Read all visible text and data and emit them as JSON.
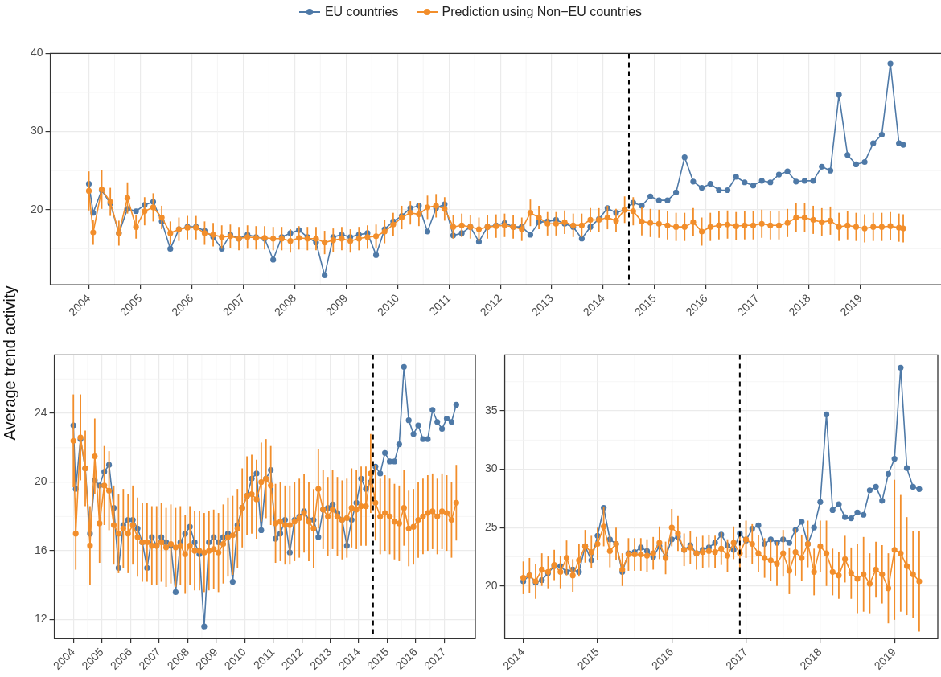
{
  "chart_data": [
    {
      "type": "line",
      "ylabel": "Average trend activity",
      "legend": "top",
      "grid": true,
      "marker": "circle",
      "line_style": "solid",
      "x": [
        "2004-01",
        "2004-02",
        "2004-04",
        "2004-06",
        "2004-08",
        "2004-10",
        "2004-12",
        "2005-02",
        "2005-04",
        "2005-06",
        "2005-08",
        "2005-10",
        "2005-12",
        "2006-02",
        "2006-04",
        "2006-06",
        "2006-08",
        "2006-10",
        "2006-12",
        "2007-02",
        "2007-04",
        "2007-06",
        "2007-08",
        "2007-10",
        "2007-12",
        "2008-02",
        "2008-04",
        "2008-06",
        "2008-08",
        "2008-10",
        "2008-12",
        "2009-02",
        "2009-04",
        "2009-06",
        "2009-08",
        "2009-10",
        "2009-12",
        "2010-02",
        "2010-04",
        "2010-06",
        "2010-08",
        "2010-10",
        "2010-12",
        "2011-02",
        "2011-04",
        "2011-06",
        "2011-08",
        "2011-10",
        "2011-12",
        "2012-02",
        "2012-04",
        "2012-06",
        "2012-08",
        "2012-10",
        "2012-12",
        "2013-02",
        "2013-04",
        "2013-06",
        "2013-08",
        "2013-10",
        "2013-12",
        "2014-02",
        "2014-04",
        "2014-06",
        "2014-08",
        "2014-10",
        "2014-12",
        "2015-02",
        "2015-04",
        "2015-06",
        "2015-08",
        "2015-10",
        "2015-12",
        "2016-02",
        "2016-04",
        "2016-06",
        "2016-08",
        "2016-10",
        "2016-12",
        "2017-02",
        "2017-04",
        "2017-06",
        "2017-08",
        "2017-10",
        "2017-12",
        "2018-02",
        "2018-04",
        "2018-06",
        "2018-08",
        "2018-10",
        "2018-12",
        "2019-02",
        "2019-04",
        "2019-06",
        "2019-08",
        "2019-10",
        "2019-11"
      ],
      "xlim": [
        "2003-04",
        "2020-08"
      ],
      "xticks": [
        "2004",
        "2005",
        "2006",
        "2007",
        "2008",
        "2009",
        "2010",
        "2011",
        "2012",
        "2013",
        "2014",
        "2015",
        "2016",
        "2017",
        "2018",
        "2019"
      ],
      "ylim": [
        10.4,
        40
      ],
      "yticks": [
        20,
        30,
        40
      ],
      "ref_lines": [
        {
          "axis": "x",
          "value": "2014-07",
          "color": "#000000",
          "line_style": "dashed"
        }
      ],
      "series": [
        {
          "name": "EU countries",
          "color": "#4e79a7",
          "values": [
            23.3,
            19.6,
            22.5,
            20.8,
            17.0,
            20.1,
            19.8,
            20.6,
            21.0,
            18.5,
            15.0,
            17.5,
            17.8,
            17.8,
            17.3,
            16.5,
            15.0,
            16.8,
            16.3,
            16.8,
            16.5,
            16.3,
            13.6,
            16.5,
            17.0,
            17.4,
            16.5,
            15.8,
            11.6,
            16.5,
            16.8,
            16.5,
            16.8,
            17.0,
            14.2,
            17.5,
            18.5,
            19.2,
            20.2,
            20.5,
            17.2,
            20.2,
            20.7,
            16.7,
            17.0,
            17.8,
            15.9,
            17.8,
            18.0,
            18.3,
            17.8,
            17.8,
            16.8,
            18.4,
            18.5,
            18.7,
            18.2,
            17.8,
            16.3,
            17.8,
            18.8,
            20.2,
            19.6,
            20.0,
            20.9,
            20.5,
            21.7,
            21.2,
            21.2,
            22.2,
            26.7,
            23.6,
            22.8,
            23.3,
            22.5,
            22.5,
            24.2,
            23.5,
            23.1,
            23.7,
            23.5,
            24.5,
            24.9,
            23.6,
            23.7,
            23.7,
            25.5,
            25.0,
            34.7,
            27.0,
            25.8,
            26.1,
            28.5,
            29.6,
            38.7,
            28.5,
            28.3
          ]
        },
        {
          "name": "Prediction using Non−EU countries",
          "color": "#f28e2b",
          "values": [
            22.4,
            17.1,
            22.6,
            21.0,
            17.0,
            21.5,
            17.8,
            19.8,
            20.3,
            19.0,
            17.0,
            17.5,
            17.7,
            17.7,
            17.0,
            16.8,
            16.5,
            16.6,
            16.3,
            16.5,
            16.4,
            16.4,
            16.3,
            16.3,
            16.0,
            16.4,
            16.3,
            16.3,
            15.8,
            16.1,
            16.3,
            16.0,
            16.3,
            16.5,
            16.6,
            17.2,
            18.1,
            19.0,
            19.6,
            19.4,
            20.3,
            20.5,
            20.1,
            17.8,
            18.0,
            17.8,
            17.5,
            17.8,
            17.9,
            18.0,
            17.8,
            17.5,
            19.6,
            19.0,
            18.2,
            18.2,
            18.4,
            18.0,
            18.0,
            18.7,
            18.7,
            19.0,
            18.6,
            20.0,
            19.8,
            18.5,
            18.3,
            18.2,
            18.0,
            17.8,
            17.8,
            18.4,
            17.2,
            17.8,
            18.0,
            18.1,
            17.9,
            18.0,
            18.0,
            18.2,
            18.0,
            18.0,
            18.3,
            19.0,
            19.0,
            18.7,
            18.4,
            18.6,
            17.8,
            18.0,
            17.8,
            17.6,
            17.8,
            17.8,
            17.9,
            17.7,
            17.6
          ],
          "errors": [
            2.5,
            1.6,
            2.5,
            1.8,
            1.6,
            2.0,
            1.5,
            1.8,
            1.8,
            1.5,
            1.5,
            1.5,
            1.5,
            1.5,
            1.5,
            1.5,
            1.5,
            1.5,
            1.5,
            1.5,
            1.5,
            1.5,
            1.5,
            1.5,
            1.5,
            1.5,
            1.5,
            1.5,
            1.5,
            1.5,
            1.5,
            1.5,
            1.5,
            1.5,
            1.5,
            1.5,
            1.5,
            1.5,
            1.5,
            1.5,
            1.5,
            1.5,
            1.5,
            1.5,
            1.5,
            1.5,
            1.5,
            1.5,
            1.5,
            1.5,
            1.5,
            1.5,
            1.7,
            1.5,
            1.5,
            1.5,
            1.5,
            1.5,
            1.5,
            1.5,
            1.5,
            1.5,
            1.5,
            1.7,
            1.8,
            1.8,
            1.8,
            1.8,
            1.8,
            1.8,
            1.8,
            1.8,
            1.8,
            1.8,
            1.8,
            1.8,
            1.8,
            1.8,
            1.8,
            1.8,
            1.8,
            1.8,
            1.8,
            1.8,
            1.8,
            1.8,
            1.8,
            1.8,
            1.8,
            1.8,
            1.8,
            1.8,
            1.8,
            1.8,
            1.8,
            1.8,
            1.8
          ]
        }
      ]
    },
    {
      "type": "line",
      "grid": true,
      "marker": "circle",
      "line_style": "solid",
      "x": [
        "2004-01",
        "2004-02",
        "2004-04",
        "2004-06",
        "2004-08",
        "2004-10",
        "2004-12",
        "2005-02",
        "2005-04",
        "2005-06",
        "2005-08",
        "2005-10",
        "2005-12",
        "2006-02",
        "2006-04",
        "2006-06",
        "2006-08",
        "2006-10",
        "2006-12",
        "2007-02",
        "2007-04",
        "2007-06",
        "2007-08",
        "2007-10",
        "2007-12",
        "2008-02",
        "2008-04",
        "2008-06",
        "2008-08",
        "2008-10",
        "2008-12",
        "2009-02",
        "2009-04",
        "2009-06",
        "2009-08",
        "2009-10",
        "2009-12",
        "2010-02",
        "2010-04",
        "2010-06",
        "2010-08",
        "2010-10",
        "2010-12",
        "2011-02",
        "2011-04",
        "2011-06",
        "2011-08",
        "2011-10",
        "2011-12",
        "2012-02",
        "2012-04",
        "2012-06",
        "2012-08",
        "2012-10",
        "2012-12",
        "2013-02",
        "2013-04",
        "2013-06",
        "2013-08",
        "2013-10",
        "2013-12",
        "2014-02",
        "2014-04",
        "2014-06",
        "2014-08",
        "2014-10",
        "2014-12",
        "2015-02",
        "2015-04",
        "2015-06",
        "2015-08",
        "2015-10",
        "2015-12",
        "2016-02",
        "2016-04",
        "2016-06",
        "2016-08",
        "2016-10",
        "2016-12",
        "2017-02",
        "2017-04",
        "2017-06"
      ],
      "xlim": [
        "2003-05",
        "2018-02"
      ],
      "xticks": [
        "2004",
        "2005",
        "2006",
        "2007",
        "2008",
        "2009",
        "2010",
        "2011",
        "2012",
        "2013",
        "2014",
        "2015",
        "2016",
        "2017"
      ],
      "ylim": [
        10.9,
        27.4
      ],
      "yticks": [
        12,
        16,
        20,
        24
      ],
      "ref_lines": [
        {
          "axis": "x",
          "value": "2014-07",
          "color": "#000000",
          "line_style": "dashed"
        }
      ],
      "series": [
        {
          "color": "#4e79a7",
          "values": [
            23.3,
            19.6,
            22.5,
            20.8,
            17.0,
            20.1,
            19.8,
            20.6,
            21.0,
            18.5,
            15.0,
            17.5,
            17.8,
            17.8,
            17.3,
            16.5,
            15.0,
            16.8,
            16.3,
            16.8,
            16.5,
            16.3,
            13.6,
            16.5,
            17.0,
            17.4,
            16.5,
            15.8,
            11.6,
            16.5,
            16.8,
            16.5,
            16.8,
            17.0,
            14.2,
            17.5,
            18.5,
            19.2,
            20.2,
            20.5,
            17.2,
            20.2,
            20.7,
            16.7,
            17.0,
            17.8,
            15.9,
            17.8,
            18.0,
            18.3,
            17.8,
            17.8,
            16.8,
            18.4,
            18.5,
            18.7,
            18.2,
            17.8,
            16.3,
            17.8,
            18.8,
            20.2,
            19.6,
            20.0,
            20.9,
            20.5,
            21.7,
            21.2,
            21.2,
            22.2,
            26.7,
            23.6,
            22.8,
            23.3,
            22.5,
            22.5,
            24.2,
            23.5,
            23.1,
            23.7,
            23.5,
            24.5
          ]
        },
        {
          "color": "#f28e2b",
          "values": [
            22.4,
            17.0,
            22.6,
            20.8,
            16.3,
            21.5,
            17.6,
            19.8,
            19.5,
            17.5,
            17.0,
            17.3,
            17.0,
            17.5,
            16.8,
            16.5,
            16.5,
            16.3,
            16.3,
            16.5,
            16.2,
            16.4,
            16.2,
            16.3,
            15.8,
            16.3,
            16.0,
            16.0,
            15.9,
            16.0,
            16.1,
            15.9,
            16.4,
            16.8,
            16.9,
            17.3,
            18.5,
            19.2,
            19.3,
            19.0,
            20.0,
            20.2,
            19.8,
            17.6,
            17.7,
            17.5,
            17.5,
            17.7,
            17.9,
            18.2,
            17.7,
            17.3,
            19.6,
            18.4,
            18.0,
            18.4,
            18.0,
            17.8,
            17.9,
            18.5,
            18.4,
            18.6,
            18.6,
            20.5,
            18.8,
            18.0,
            18.2,
            18.0,
            17.7,
            17.6,
            18.5,
            17.3,
            17.4,
            17.8,
            18.0,
            18.2,
            18.3,
            18.0,
            18.3,
            18.2,
            17.8,
            18.8
          ],
          "errors": [
            2.7,
            2.1,
            2.5,
            2.2,
            2.3,
            2.2,
            2.3,
            2.3,
            2.3,
            2.3,
            2.3,
            2.3,
            2.3,
            2.3,
            2.3,
            2.3,
            2.3,
            2.3,
            2.3,
            2.3,
            2.3,
            2.3,
            2.3,
            2.3,
            2.3,
            2.3,
            2.3,
            2.3,
            2.3,
            2.3,
            2.3,
            2.3,
            2.3,
            2.3,
            2.3,
            2.3,
            2.3,
            2.3,
            2.3,
            2.3,
            2.3,
            2.3,
            2.3,
            2.3,
            2.3,
            2.3,
            2.3,
            2.3,
            2.3,
            2.3,
            2.3,
            2.3,
            2.3,
            2.3,
            2.3,
            2.3,
            2.3,
            2.3,
            2.3,
            2.3,
            2.3,
            2.3,
            2.3,
            2.3,
            2.2,
            2.2,
            2.2,
            2.2,
            2.2,
            2.2,
            2.2,
            2.2,
            2.2,
            2.2,
            2.2,
            2.2,
            2.2,
            2.2,
            2.2,
            2.2,
            2.2,
            2.2
          ]
        }
      ]
    },
    {
      "type": "line",
      "grid": true,
      "marker": "circle",
      "line_style": "solid",
      "x": [
        "2014-01",
        "2014-02",
        "2014-03",
        "2014-04",
        "2014-05",
        "2014-06",
        "2014-07",
        "2014-08",
        "2014-09",
        "2014-10",
        "2014-11",
        "2014-12",
        "2015-01",
        "2015-02",
        "2015-03",
        "2015-04",
        "2015-05",
        "2015-06",
        "2015-07",
        "2015-08",
        "2015-09",
        "2015-10",
        "2015-11",
        "2015-12",
        "2016-01",
        "2016-02",
        "2016-03",
        "2016-04",
        "2016-05",
        "2016-06",
        "2016-07",
        "2016-08",
        "2016-09",
        "2016-10",
        "2016-11",
        "2016-12",
        "2017-01",
        "2017-02",
        "2017-03",
        "2017-04",
        "2017-05",
        "2017-06",
        "2017-07",
        "2017-08",
        "2017-09",
        "2017-10",
        "2017-11",
        "2017-12",
        "2018-01",
        "2018-02",
        "2018-03",
        "2018-04",
        "2018-05",
        "2018-06",
        "2018-07",
        "2018-08",
        "2018-09",
        "2018-10",
        "2018-11",
        "2018-12",
        "2019-01",
        "2019-02",
        "2019-03",
        "2019-04",
        "2019-05"
      ],
      "xlim": [
        "2013-10",
        "2019-08"
      ],
      "xticks": [
        "2014",
        "2015",
        "2016",
        "2017",
        "2018",
        "2019"
      ],
      "ylim": [
        15.5,
        39.8
      ],
      "yticks": [
        20,
        25,
        30,
        35
      ],
      "ref_lines": [
        {
          "axis": "x",
          "value": "2016-12",
          "color": "#000000",
          "line_style": "dashed"
        }
      ],
      "series": [
        {
          "color": "#4e79a7",
          "values": [
            20.4,
            20.9,
            20.3,
            20.5,
            21.1,
            21.7,
            21.7,
            21.2,
            21.4,
            21.2,
            23.4,
            22.2,
            24.3,
            26.7,
            24.0,
            23.6,
            21.2,
            22.8,
            22.9,
            23.3,
            23.0,
            22.5,
            23.4,
            22.5,
            24.0,
            24.2,
            23.1,
            23.5,
            22.8,
            23.1,
            23.3,
            23.7,
            24.4,
            23.5,
            23.1,
            24.5,
            23.9,
            24.9,
            25.2,
            23.6,
            24.0,
            23.7,
            24.0,
            23.7,
            24.8,
            25.5,
            23.6,
            25.0,
            27.2,
            34.7,
            26.5,
            27.0,
            25.9,
            25.8,
            26.3,
            26.1,
            28.2,
            28.5,
            27.3,
            29.6,
            30.9,
            38.7,
            30.1,
            28.5,
            28.3
          ]
        },
        {
          "color": "#f28e2b",
          "values": [
            20.7,
            20.9,
            20.4,
            21.4,
            21.2,
            21.8,
            21.2,
            22.4,
            20.9,
            22.2,
            23.4,
            22.9,
            23.6,
            25.1,
            23.0,
            23.6,
            21.4,
            22.7,
            22.7,
            22.7,
            22.6,
            22.8,
            23.7,
            22.4,
            25.0,
            24.5,
            23.1,
            23.3,
            22.8,
            22.9,
            23.0,
            22.9,
            23.2,
            22.6,
            23.7,
            22.8,
            24.0,
            23.6,
            22.8,
            22.4,
            22.2,
            21.9,
            22.8,
            21.3,
            22.9,
            22.4,
            23.6,
            21.2,
            23.4,
            22.8,
            21.2,
            20.9,
            22.3,
            21.1,
            20.6,
            21.0,
            20.2,
            21.4,
            21.0,
            19.8,
            23.1,
            22.8,
            21.7,
            21.0,
            20.4
          ],
          "errors": [
            1.4,
            1.5,
            1.5,
            1.4,
            1.4,
            1.3,
            1.4,
            1.5,
            1.4,
            1.4,
            1.4,
            1.4,
            1.4,
            1.7,
            1.4,
            1.4,
            1.4,
            1.4,
            1.4,
            1.4,
            1.4,
            1.4,
            1.4,
            1.4,
            1.6,
            1.5,
            1.4,
            1.4,
            1.4,
            1.4,
            1.4,
            1.4,
            1.4,
            1.4,
            1.4,
            1.5,
            1.6,
            1.7,
            1.6,
            1.7,
            1.8,
            1.9,
            2.0,
            2.0,
            2.0,
            2.0,
            2.0,
            2.0,
            2.2,
            2.8,
            2.0,
            2.0,
            2.0,
            2.2,
            3.0,
            3.2,
            2.6,
            2.4,
            2.5,
            3.0,
            6.0,
            5.0,
            4.2,
            3.7,
            4.3
          ]
        }
      ]
    }
  ]
}
